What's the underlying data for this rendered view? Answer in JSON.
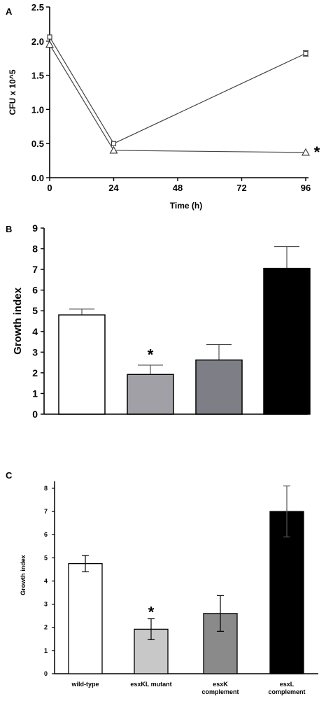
{
  "chart_data": [
    {
      "panel": "A",
      "type": "line",
      "xlabel": "Time (h)",
      "ylabel": "CFU x 10^5",
      "xlim": [
        0,
        96
      ],
      "ylim": [
        0,
        2.5
      ],
      "x_ticks": [
        "0",
        "24",
        "48",
        "72",
        "96"
      ],
      "y_ticks": [
        "0.0",
        "0.5",
        "1.0",
        "1.5",
        "2.0",
        "2.5"
      ],
      "x": [
        0,
        24,
        96
      ],
      "series": [
        {
          "marker": "square",
          "values": [
            2.06,
            0.5,
            1.82
          ],
          "errors": [
            0,
            0,
            0.04
          ]
        },
        {
          "marker": "triangle",
          "values": [
            1.95,
            0.4,
            0.37
          ],
          "errors": [
            0,
            0,
            0
          ]
        }
      ],
      "annotation": {
        "text": "*",
        "x": 96,
        "y": 0.42
      }
    },
    {
      "panel": "B",
      "type": "bar",
      "ylabel": "Growth index",
      "ylim": [
        0,
        9
      ],
      "y_ticks": [
        "0",
        "1",
        "2",
        "3",
        "4",
        "5",
        "6",
        "7",
        "8",
        "9"
      ],
      "values": [
        4.8,
        1.92,
        2.62,
        7.05
      ],
      "errors": [
        0.28,
        0.45,
        0.75,
        1.05
      ],
      "colors": [
        "#ffffff",
        "#a0a0a6",
        "#7e7e86",
        "#000000"
      ],
      "annotation": {
        "text": "*",
        "bar": 1,
        "y": 2.55
      }
    },
    {
      "panel": "C",
      "type": "bar",
      "ylabel": "Growth index",
      "ylim": [
        0,
        8.3
      ],
      "y_ticks": [
        "0",
        "1",
        "2",
        "3",
        "4",
        "5",
        "6",
        "7",
        "8"
      ],
      "categories": [
        [
          "wild-type"
        ],
        [
          "esxKL mutant"
        ],
        [
          "esxK",
          "complement"
        ],
        [
          "esxL",
          "complement"
        ]
      ],
      "values": [
        4.75,
        1.92,
        2.6,
        7.0
      ],
      "errors": [
        0.35,
        0.45,
        0.77,
        1.1
      ],
      "colors": [
        "#ffffff",
        "#c8c8c8",
        "#8a8a8a",
        "#000000"
      ],
      "annotation": {
        "text": "*",
        "bar": 1,
        "y": 2.55
      }
    }
  ],
  "panel_labels": [
    "A",
    "B",
    "C"
  ]
}
